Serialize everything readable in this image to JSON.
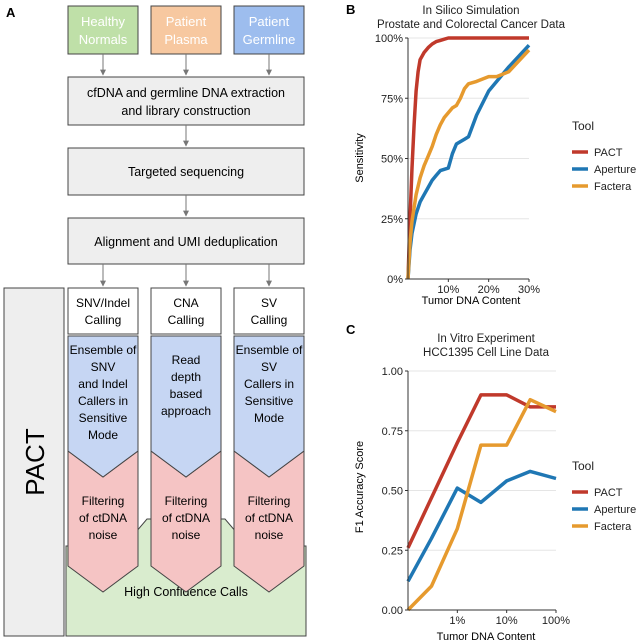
{
  "panel_labels": {
    "a": "A",
    "b": "B",
    "c": "C"
  },
  "flowchart": {
    "sources": [
      {
        "line1": "Healthy",
        "line2": "Normals",
        "color": "#bfe0a8"
      },
      {
        "line1": "Patient",
        "line2": "Plasma",
        "color": "#f7c8a0"
      },
      {
        "line1": "Patient",
        "line2": "Germline",
        "color": "#9dbdee"
      }
    ],
    "steps": {
      "extraction_line1": "cfDNA and germline DNA extraction",
      "extraction_line2": "and library construction",
      "sequencing": "Targeted sequencing",
      "alignment": "Alignment and UMI deduplication"
    },
    "pact_label": "PACT",
    "columns": [
      {
        "calling_line1": "SNV/Indel",
        "calling_line2": "Calling",
        "method": [
          "Ensemble of",
          "SNV",
          "and Indel",
          "Callers in",
          "Sensitive",
          "Mode"
        ],
        "filter": [
          "Filtering",
          "of ctDNA",
          "noise"
        ]
      },
      {
        "calling_line1": "CNA",
        "calling_line2": "Calling",
        "method": [
          "Read",
          "depth",
          "based",
          "approach"
        ],
        "filter": [
          "Filtering",
          "of ctDNA",
          "noise"
        ]
      },
      {
        "calling_line1": "SV",
        "calling_line2": "Calling",
        "method": [
          "Ensemble of",
          "SV",
          "Callers in",
          "Sensitive",
          "Mode"
        ],
        "filter": [
          "Filtering",
          "of ctDNA",
          "noise"
        ]
      }
    ],
    "final": "High Confidence Calls",
    "colors": {
      "step_fill": "#eeeeee",
      "method_fill": "#c6d6f3",
      "filter_fill": "#f5c4c4",
      "final_fill": "#d9ecce"
    }
  },
  "chart_data": [
    {
      "type": "line",
      "title": "In Silico Simulation",
      "subtitle": "Prostate and Colorectal Cancer Data",
      "xlabel": "Tumor DNA Content",
      "ylabel": "Sensitivity",
      "xlim": [
        0,
        30
      ],
      "ylim": [
        0,
        100
      ],
      "x_ticks": [
        {
          "value": 10,
          "label": "10%"
        },
        {
          "value": 20,
          "label": "20%"
        },
        {
          "value": 30,
          "label": "30%"
        }
      ],
      "y_ticks": [
        {
          "value": 0,
          "label": "0%"
        },
        {
          "value": 25,
          "label": "25%"
        },
        {
          "value": 50,
          "label": "50%"
        },
        {
          "value": 75,
          "label": "75%"
        },
        {
          "value": 100,
          "label": "100%"
        }
      ],
      "legend_title": "Tool",
      "legend_position": "right",
      "series": [
        {
          "name": "PACT",
          "color": "#c0392b",
          "x": [
            0,
            0.5,
            1,
            1.5,
            2,
            2.5,
            3,
            4,
            5,
            6,
            7,
            8,
            9,
            10,
            12,
            15,
            20,
            25,
            30
          ],
          "y": [
            0,
            25,
            46,
            64,
            78,
            86,
            91,
            94,
            96,
            97.5,
            98.5,
            99,
            99.5,
            100,
            100,
            100,
            100,
            100,
            100
          ]
        },
        {
          "name": "Aperture",
          "color": "#1f77b4",
          "x": [
            0,
            0.5,
            1,
            2,
            3,
            4,
            5,
            6,
            7,
            8,
            9,
            10,
            11,
            12,
            13,
            14,
            15,
            17,
            20,
            25,
            30
          ],
          "y": [
            0,
            12,
            19,
            27,
            32,
            35,
            38,
            41,
            43,
            45,
            45.5,
            46,
            52,
            56,
            57,
            58,
            59,
            68,
            78,
            88,
            97
          ]
        },
        {
          "name": "Factera",
          "color": "#e69a2e",
          "x": [
            0,
            0.5,
            1,
            2,
            3,
            4,
            5,
            6,
            7,
            8,
            9,
            10,
            11,
            12,
            13,
            14,
            15,
            17,
            20,
            22,
            25,
            30
          ],
          "y": [
            0,
            15,
            24,
            35,
            42,
            47,
            51,
            55,
            60,
            64,
            67,
            69,
            71,
            72,
            75,
            79,
            81,
            82,
            84,
            84,
            86,
            95
          ]
        }
      ]
    },
    {
      "type": "line",
      "title": "In Vitro Experiment",
      "subtitle": "HCC1395 Cell Line Data",
      "xlabel": "Tumor DNA Content",
      "ylabel": "F1 Accuracy Score",
      "x_scale": "log10",
      "xlim": [
        0.1,
        100
      ],
      "ylim": [
        0,
        1
      ],
      "x_ticks": [
        {
          "value": 1,
          "label": "1%"
        },
        {
          "value": 10,
          "label": "10%"
        },
        {
          "value": 100,
          "label": "100%"
        }
      ],
      "y_ticks": [
        {
          "value": 0,
          "label": "0.00"
        },
        {
          "value": 0.25,
          "label": "0.25"
        },
        {
          "value": 0.5,
          "label": "0.50"
        },
        {
          "value": 0.75,
          "label": "0.75"
        },
        {
          "value": 1,
          "label": "1.00"
        }
      ],
      "legend_title": "Tool",
      "legend_position": "right",
      "series": [
        {
          "name": "PACT",
          "color": "#c0392b",
          "x": [
            0.1,
            1,
            3,
            10,
            30,
            100
          ],
          "y": [
            0.26,
            0.7,
            0.9,
            0.9,
            0.85,
            0.85
          ]
        },
        {
          "name": "Aperture",
          "color": "#1f77b4",
          "x": [
            0.1,
            0.3,
            1,
            3,
            10,
            30,
            100
          ],
          "y": [
            0.12,
            0.3,
            0.51,
            0.45,
            0.54,
            0.58,
            0.55
          ]
        },
        {
          "name": "Factera",
          "color": "#e69a2e",
          "x": [
            0.1,
            0.3,
            1,
            3,
            10,
            30,
            100
          ],
          "y": [
            0.0,
            0.1,
            0.34,
            0.69,
            0.69,
            0.88,
            0.83
          ]
        }
      ]
    }
  ]
}
